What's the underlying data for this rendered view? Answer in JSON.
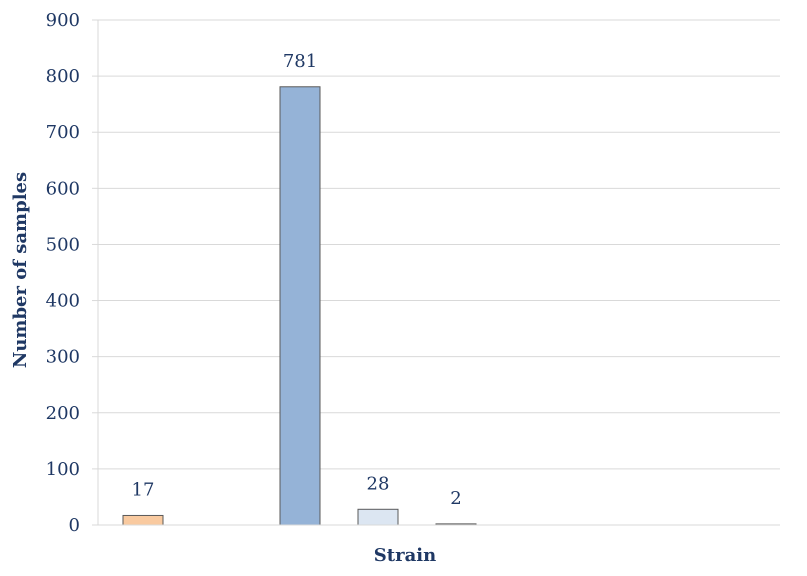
{
  "chart_data": {
    "type": "bar",
    "categories": [
      "",
      "",
      "",
      ""
    ],
    "values": [
      17,
      781,
      28,
      2
    ],
    "data_labels": [
      "17",
      "781",
      "28",
      "2"
    ],
    "bar_colors": [
      "#f9caa0",
      "#95b3d7",
      "#dce6f2",
      "#bfbfbf"
    ],
    "xlabel": "Strain",
    "ylabel": "Number of samples",
    "ylim": [
      0,
      900
    ],
    "yticks": [
      "0",
      "100",
      "200",
      "300",
      "400",
      "500",
      "600",
      "700",
      "800",
      "900"
    ],
    "grid": true,
    "legend": "none"
  },
  "colors": {
    "axis_text": "#1f3864",
    "gridline": "#d9d9d9",
    "bar_stroke": "#595959"
  }
}
